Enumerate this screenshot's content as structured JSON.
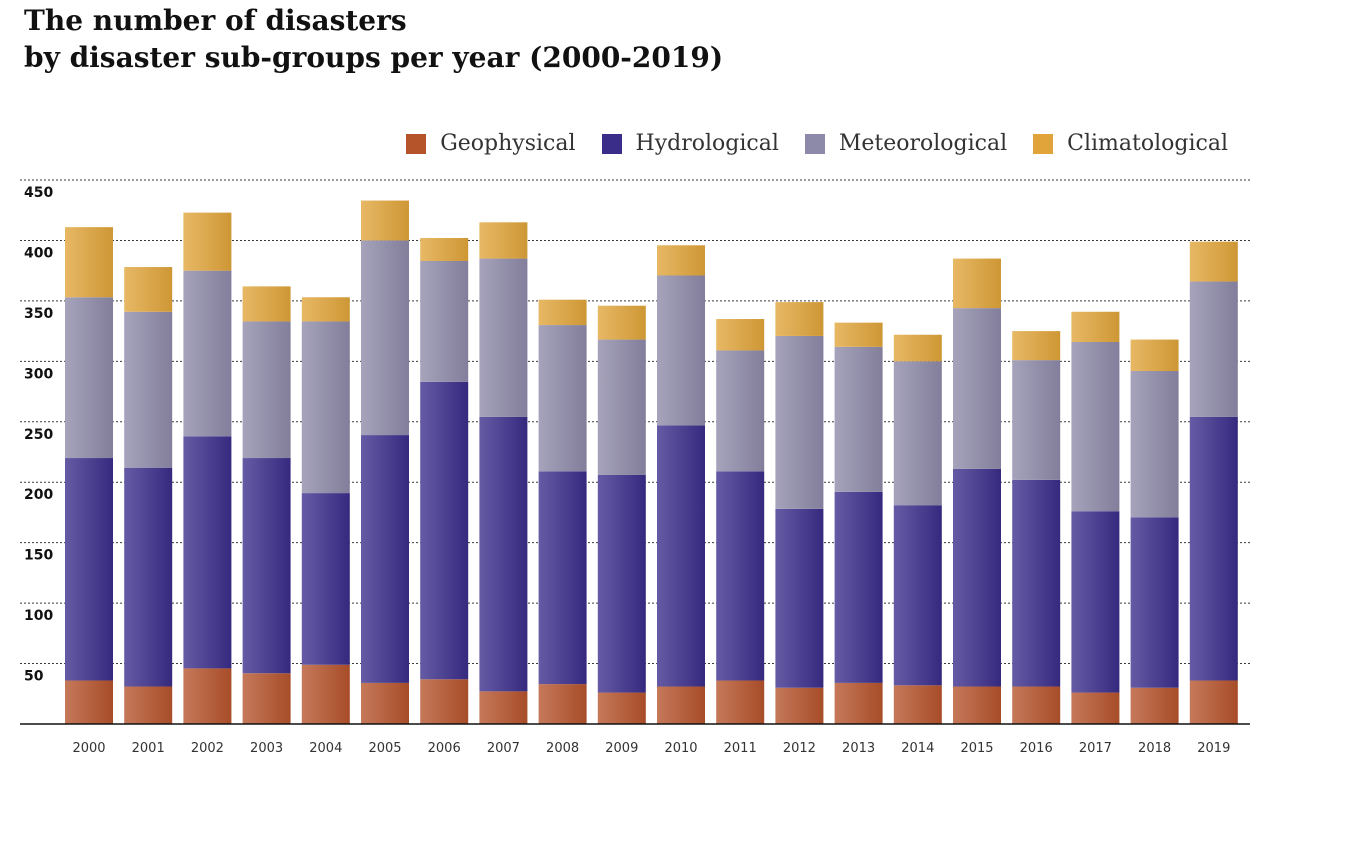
{
  "title_line1": "The number of disasters",
  "title_line2": "by disaster sub-groups per year (2000-2019)",
  "chart_data": {
    "type": "bar",
    "stacked": true,
    "categories": [
      "2000",
      "2001",
      "2002",
      "2003",
      "2004",
      "2005",
      "2006",
      "2007",
      "2008",
      "2009",
      "2010",
      "2011",
      "2012",
      "2013",
      "2014",
      "2015",
      "2016",
      "2017",
      "2018",
      "2019"
    ],
    "series": [
      {
        "name": "Geophysical",
        "color": "#b5532b",
        "values": [
          36,
          31,
          46,
          42,
          49,
          34,
          37,
          27,
          33,
          26,
          31,
          36,
          30,
          34,
          32,
          31,
          31,
          26,
          30,
          36
        ]
      },
      {
        "name": "Hydrological",
        "color": "#3a2d8a",
        "values": [
          184,
          181,
          192,
          178,
          142,
          205,
          246,
          227,
          176,
          180,
          216,
          173,
          148,
          158,
          149,
          180,
          171,
          150,
          141,
          218
        ]
      },
      {
        "name": "Meteorological",
        "color": "#8d89a8",
        "values": [
          133,
          129,
          137,
          113,
          142,
          161,
          100,
          131,
          121,
          112,
          124,
          100,
          143,
          120,
          119,
          133,
          99,
          140,
          121,
          112
        ]
      },
      {
        "name": "Climatological",
        "color": "#e0a43a",
        "values": [
          58,
          37,
          48,
          29,
          20,
          33,
          19,
          30,
          21,
          28,
          25,
          26,
          28,
          20,
          22,
          41,
          24,
          25,
          26,
          33
        ]
      }
    ],
    "xlabel": "",
    "ylabel": "",
    "ylim": [
      0,
      450
    ],
    "yticks": [
      50,
      100,
      150,
      200,
      250,
      300,
      350,
      400,
      450
    ],
    "grid": true,
    "legend_position": "top-right"
  }
}
